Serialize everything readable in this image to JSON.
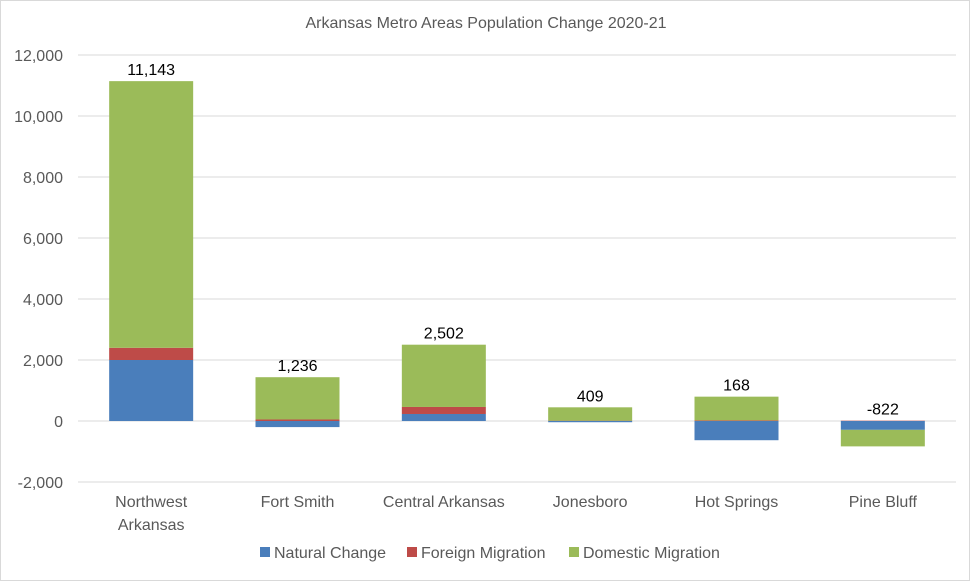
{
  "chart_data": {
    "type": "bar",
    "stacked": true,
    "title": "Arkansas Metro Areas Population Change 2020-21",
    "categories": [
      [
        "Northwest",
        "Arkansas"
      ],
      [
        "Fort Smith"
      ],
      [
        "Central Arkansas"
      ],
      [
        "Jonesboro"
      ],
      [
        "Hot Springs"
      ],
      [
        "Pine Bluff"
      ]
    ],
    "series": [
      {
        "name": "Natural Change",
        "color": "#4a7ebb",
        "values": [
          2000,
          -200,
          230,
          -40,
          -630,
          -290
        ]
      },
      {
        "name": "Foreign Migration",
        "color": "#be4b48",
        "values": [
          400,
          50,
          230,
          10,
          20,
          10
        ]
      },
      {
        "name": "Domestic Migration",
        "color": "#9bbb59",
        "values": [
          8743,
          1386,
          2042,
          439,
          778,
          -542
        ]
      }
    ],
    "totals": [
      "11,143",
      "1,236",
      "2,502",
      "409",
      "168",
      "-822"
    ],
    "y_ticks": [
      "-2,000",
      "0",
      "2,000",
      "4,000",
      "6,000",
      "8,000",
      "10,000",
      "12,000"
    ],
    "ylim": [
      -2000,
      12000
    ],
    "grid": true,
    "legend_position": "bottom"
  }
}
